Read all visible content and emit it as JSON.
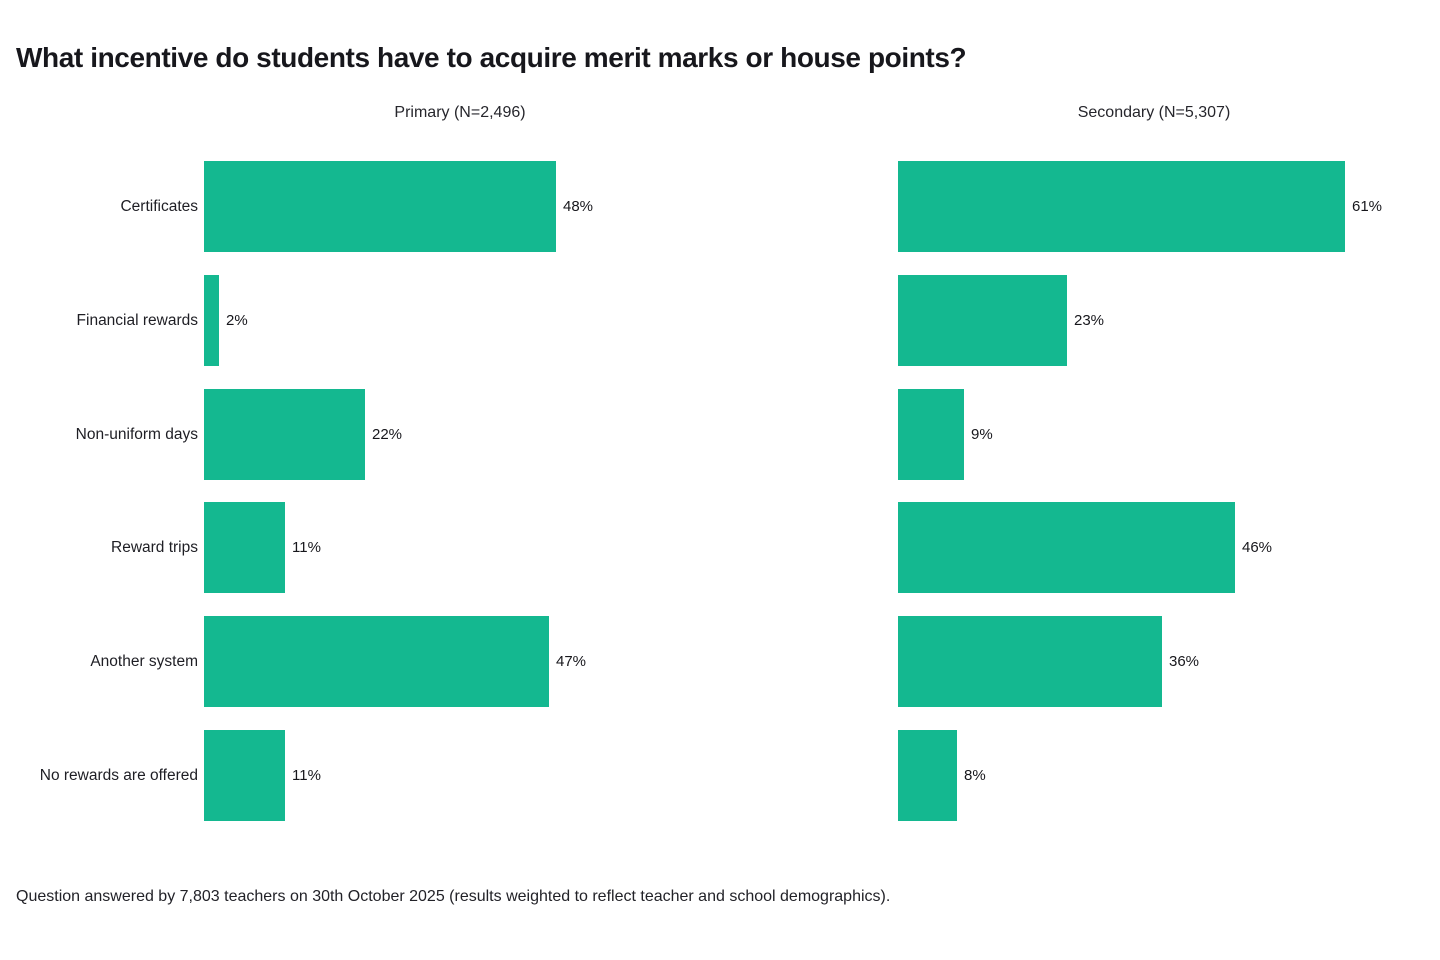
{
  "title": "What incentive do students have to acquire merit marks or house points?",
  "footnote": "Question answered by 7,803 teachers on 30th October 2025 (results weighted to reflect teacher and school demographics).",
  "colors": {
    "bar": "#14b890",
    "text": "#17171c"
  },
  "chart_data": {
    "type": "bar",
    "orientation": "horizontal",
    "title": "What incentive do students have to acquire merit marks or house points?",
    "categories": [
      "Certificates",
      "Financial rewards",
      "Non-uniform days",
      "Reward trips",
      "Another system",
      "No rewards are offered"
    ],
    "series": [
      {
        "name": "Primary (N=2,496)",
        "values": [
          48,
          2,
          22,
          11,
          47,
          11
        ]
      },
      {
        "name": "Secondary (N=5,307)",
        "values": [
          61,
          23,
          9,
          46,
          36,
          8
        ]
      }
    ],
    "value_suffix": "%",
    "xlim": [
      0,
      65
    ],
    "grid": false,
    "legend_position": "column-headers",
    "annotation": "Question answered by 7,803 teachers on 30th October 2025 (results weighted to reflect teacher and school demographics)."
  }
}
